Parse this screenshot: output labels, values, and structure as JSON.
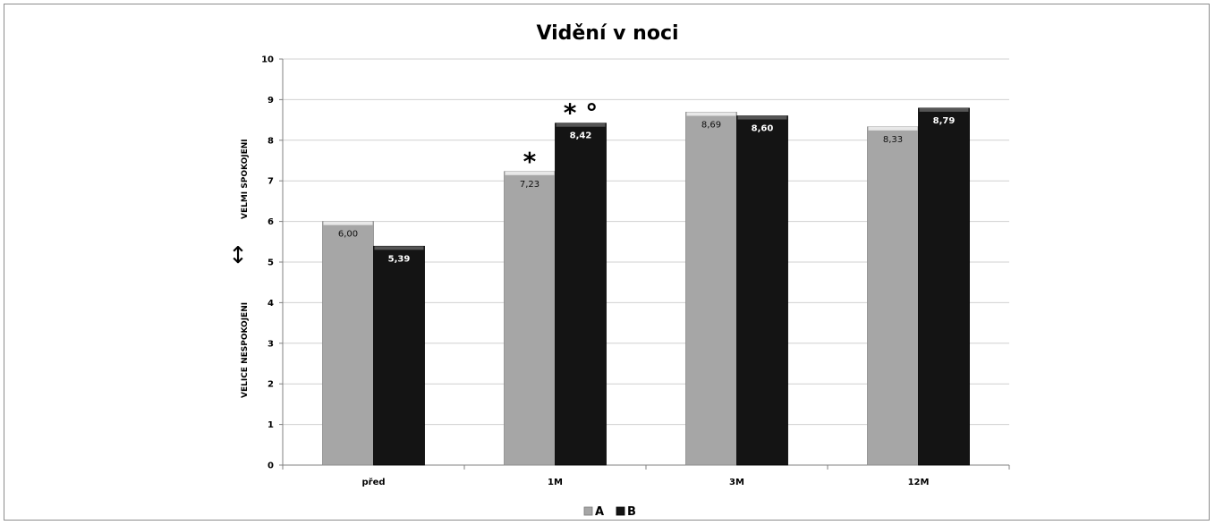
{
  "chart_data": {
    "type": "bar",
    "title": "Vidění v noci",
    "categories": [
      "před",
      "1M",
      "3M",
      "12M"
    ],
    "series": [
      {
        "name": "A",
        "values": [
          6.0,
          7.23,
          8.69,
          8.33
        ],
        "labels": [
          "6,00",
          "7,23",
          "8,69",
          "8,33"
        ],
        "color": "#a6a6a6"
      },
      {
        "name": "B",
        "values": [
          5.39,
          8.42,
          8.6,
          8.79
        ],
        "labels": [
          "5,39",
          "8,42",
          "8,60",
          "8,79"
        ],
        "color": "#141414"
      }
    ],
    "ylim": [
      0,
      10
    ],
    "yticks": [
      "0",
      "1",
      "2",
      "3",
      "4",
      "5",
      "6",
      "7",
      "8",
      "9",
      "10"
    ],
    "ylabel_top": "VELMI SPOKOJENI",
    "ylabel_bottom": "VELICE NESPOKOJENI",
    "ylabel_symbol": "↕",
    "annotations": [
      {
        "text": "*",
        "category": "1M",
        "series": "A"
      },
      {
        "text": "* °",
        "category": "1M",
        "series": "B"
      }
    ],
    "grid": true,
    "legend": "bottom"
  },
  "colors": {
    "gridline": "#d0d0d0",
    "axis": "#808080"
  }
}
